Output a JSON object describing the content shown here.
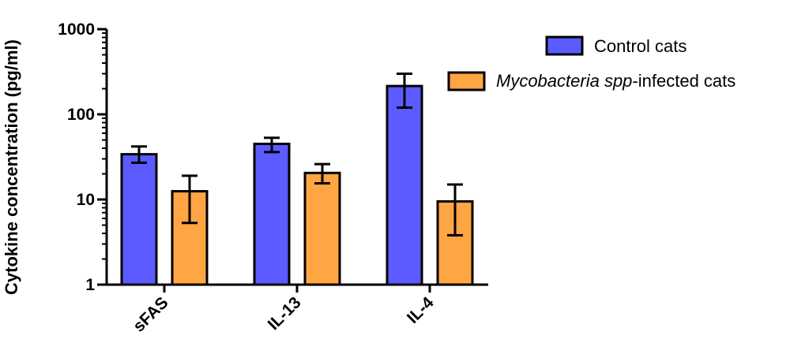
{
  "chart_data": {
    "type": "bar",
    "title": "",
    "xlabel": "",
    "ylabel": "Cytokine concentration (pg/ml)",
    "yscale": "log",
    "ylim": [
      1,
      1000
    ],
    "yticks": [
      "1",
      "10",
      "100",
      "1000"
    ],
    "categories": [
      "sFAS",
      "IL-13",
      "IL-4"
    ],
    "legend_placement": "top-right",
    "grid": false,
    "series": [
      {
        "name": "Control cats",
        "color": "#5b5bff",
        "values": [
          34,
          45,
          215
        ],
        "err_low": [
          27,
          36,
          120
        ],
        "err_high": [
          42,
          53,
          300
        ]
      },
      {
        "name_italic": "Mycobacteria spp",
        "name_rest": "-infected cats",
        "color": "#ffa544",
        "values": [
          12.5,
          20.5,
          9.5
        ],
        "err_low": [
          5.3,
          15.5,
          3.8
        ],
        "err_high": [
          19,
          26,
          15
        ]
      }
    ]
  }
}
